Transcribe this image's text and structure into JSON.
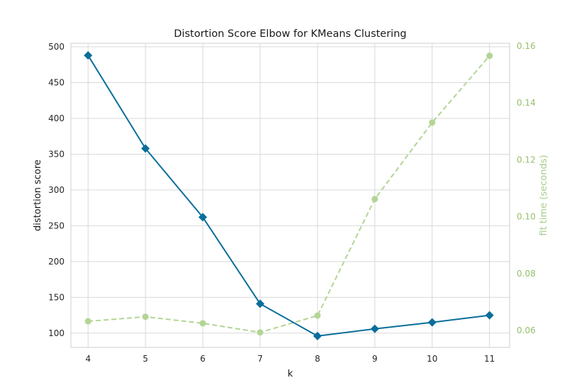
{
  "chart_data": {
    "type": "line",
    "title": "Distortion Score Elbow for KMeans Clustering",
    "xlabel": "k",
    "ylabel": "distortion score",
    "y2label": "fit time (seconds)",
    "x": [
      4,
      5,
      6,
      7,
      8,
      9,
      10,
      11
    ],
    "xlim": [
      3.7,
      11.35
    ],
    "ylim": [
      80,
      505
    ],
    "y2lim": [
      0.054,
      0.161
    ],
    "xticks": [
      4,
      5,
      6,
      7,
      8,
      9,
      10,
      11
    ],
    "yticks": [
      100,
      150,
      200,
      250,
      300,
      350,
      400,
      450,
      500
    ],
    "y2ticks": [
      0.06,
      0.08,
      0.1,
      0.12,
      0.14,
      0.16
    ],
    "y2tick_labels": [
      "0.06",
      "0.08",
      "0.10",
      "0.12",
      "0.14",
      "0.16"
    ],
    "grid": true,
    "series": [
      {
        "axis": "left",
        "values": [
          488,
          358,
          262,
          141,
          96,
          106,
          115,
          125
        ],
        "color": "#0a6e9b",
        "marker": "diamond",
        "style": "solid"
      },
      {
        "axis": "right",
        "values": [
          0.0632,
          0.0648,
          0.0625,
          0.0593,
          0.0652,
          0.1062,
          0.1331,
          0.1566
        ],
        "color": "#b3d594",
        "marker": "circle",
        "style": "dashed"
      }
    ]
  }
}
